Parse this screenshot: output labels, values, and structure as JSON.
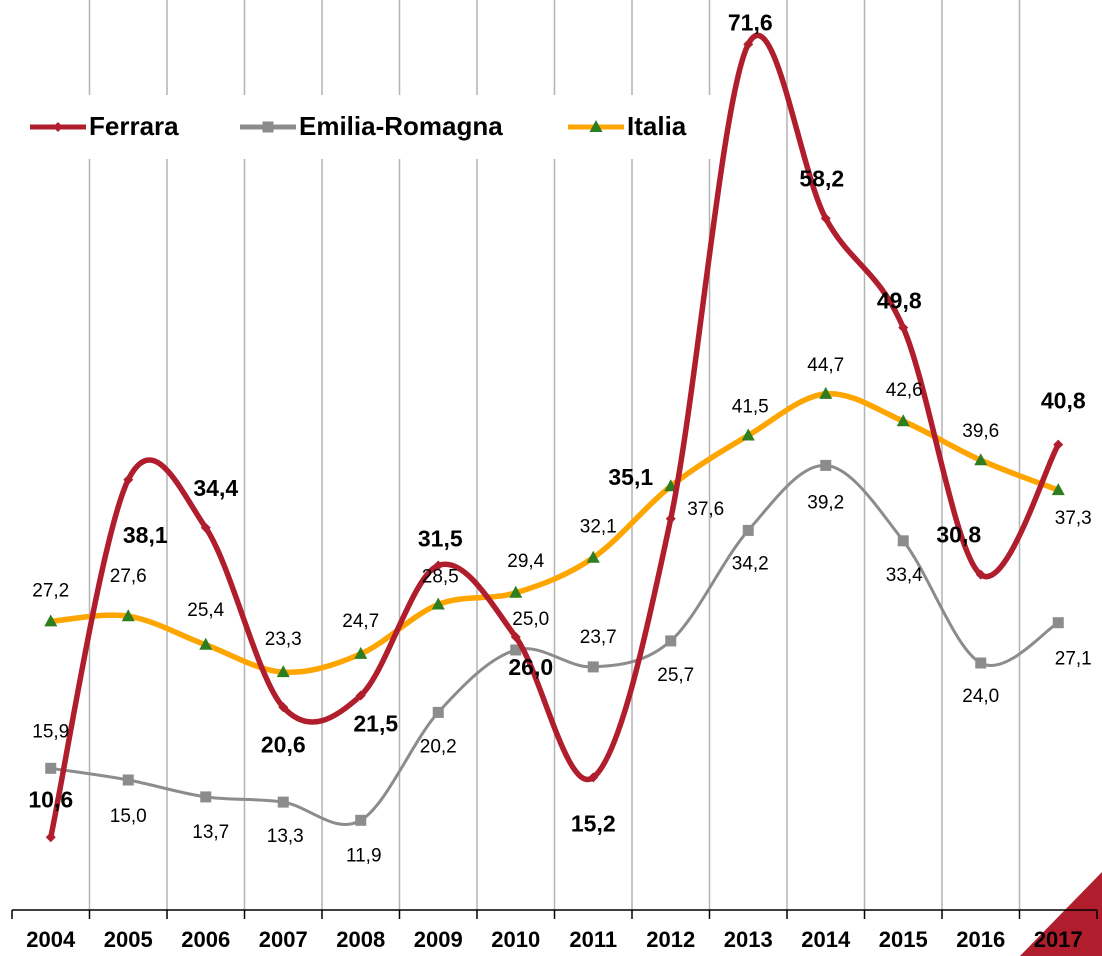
{
  "chart_data": {
    "type": "line",
    "categories": [
      "2004",
      "2005",
      "2006",
      "2007",
      "2008",
      "2009",
      "2010",
      "2011",
      "2012",
      "2013",
      "2014",
      "2015",
      "2016",
      "2017"
    ],
    "series": [
      {
        "name": "Ferrara",
        "color": "#b01e2d",
        "marker": "diamond",
        "values": [
          10.6,
          38.1,
          34.4,
          20.6,
          21.5,
          31.5,
          26.0,
          15.2,
          35.1,
          71.6,
          58.2,
          49.8,
          30.8,
          40.8
        ],
        "value_labels": [
          "10,6",
          "38,1",
          "34,4",
          "20,6",
          "21,5",
          "31,5",
          "26,0",
          "15,2",
          "35,1",
          "71,6",
          "58,2",
          "49,8",
          "30,8",
          "40,8"
        ]
      },
      {
        "name": "Emilia-Romagna",
        "color": "#8c8c8c",
        "marker": "square",
        "values": [
          15.9,
          15.0,
          13.7,
          13.3,
          11.9,
          20.2,
          25.0,
          23.7,
          25.7,
          34.2,
          39.2,
          33.4,
          24.0,
          27.1
        ],
        "value_labels": [
          "15,9",
          "15,0",
          "13,7",
          "13,3",
          "11,9",
          "20,2",
          "25,0",
          "23,7",
          "25,7",
          "34,2",
          "39,2",
          "33,4",
          "24,0",
          "27,1"
        ]
      },
      {
        "name": "Italia",
        "color": "#ffa500",
        "marker": "triangle",
        "marker_color": "#2e7d1e",
        "values": [
          27.2,
          27.6,
          25.4,
          23.3,
          24.7,
          28.5,
          29.4,
          32.1,
          37.6,
          41.5,
          44.7,
          42.6,
          39.6,
          37.3
        ],
        "value_labels": [
          "27,2",
          "27,6",
          "25,4",
          "23,3",
          "24,7",
          "28,5",
          "29,4",
          "32,1",
          "37,6",
          "41,5",
          "44,7",
          "42,6",
          "39,6",
          "37,3"
        ]
      }
    ],
    "ylim": [
      5,
      75
    ],
    "grid": true,
    "legend": "top-left"
  }
}
